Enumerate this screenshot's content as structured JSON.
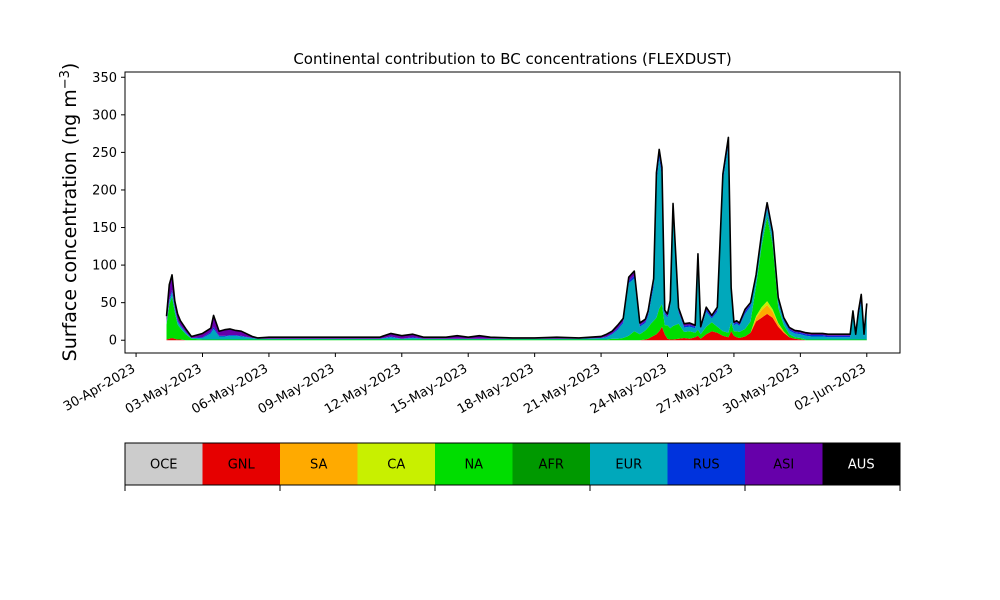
{
  "chart_data": {
    "type": "area",
    "title": "Continental contribution to BC concentrations (FLEXDUST)",
    "ylabel": "Surface concentration (ng m",
    "ylabel_sup": "−3",
    "ylabel_close": ")",
    "xlabel": "",
    "ylim": [
      -17,
      357
    ],
    "xlim": [
      "2023-04-29T12:00",
      "2023-06-03T12:00"
    ],
    "yticks": [
      0,
      50,
      100,
      150,
      200,
      250,
      300,
      350
    ],
    "xticks": [
      "2023-04-30",
      "2023-05-03",
      "2023-05-06",
      "2023-05-09",
      "2023-05-12",
      "2023-05-15",
      "2023-05-18",
      "2023-05-21",
      "2023-05-24",
      "2023-05-27",
      "2023-05-30",
      "2023-06-02"
    ],
    "xtick_labels": [
      "30-Apr-2023",
      "03-May-2023",
      "06-May-2023",
      "09-May-2023",
      "12-May-2023",
      "15-May-2023",
      "18-May-2023",
      "21-May-2023",
      "24-May-2023",
      "27-May-2023",
      "30-May-2023",
      "02-Jun-2023"
    ],
    "grid": false,
    "legend_placement": "below chart, colorbar style",
    "x": [
      "2023-05-01T09:00",
      "2023-05-01T12:00",
      "2023-05-01T15:00",
      "2023-05-01T18:00",
      "2023-05-01T21:00",
      "2023-05-02T00:00",
      "2023-05-02T06:00",
      "2023-05-02T12:00",
      "2023-05-03T00:00",
      "2023-05-03T09:00",
      "2023-05-03T12:00",
      "2023-05-03T18:00",
      "2023-05-04T00:00",
      "2023-05-04T06:00",
      "2023-05-04T12:00",
      "2023-05-04T18:00",
      "2023-05-05T06:00",
      "2023-05-05T12:00",
      "2023-05-06T00:00",
      "2023-05-07T00:00",
      "2023-05-08T00:00",
      "2023-05-09T00:00",
      "2023-05-10T00:00",
      "2023-05-11T00:00",
      "2023-05-11T12:00",
      "2023-05-12T00:00",
      "2023-05-12T12:00",
      "2023-05-13T00:00",
      "2023-05-14T00:00",
      "2023-05-14T12:00",
      "2023-05-15T00:00",
      "2023-05-15T12:00",
      "2023-05-16T00:00",
      "2023-05-17T00:00",
      "2023-05-18T00:00",
      "2023-05-19T00:00",
      "2023-05-20T00:00",
      "2023-05-21T00:00",
      "2023-05-21T06:00",
      "2023-05-21T12:00",
      "2023-05-21T18:00",
      "2023-05-22T00:00",
      "2023-05-22T06:00",
      "2023-05-22T12:00",
      "2023-05-22T18:00",
      "2023-05-23T00:00",
      "2023-05-23T03:00",
      "2023-05-23T06:00",
      "2023-05-23T09:00",
      "2023-05-23T12:00",
      "2023-05-23T15:00",
      "2023-05-23T18:00",
      "2023-05-23T21:00",
      "2023-05-24T00:00",
      "2023-05-24T03:00",
      "2023-05-24T06:00",
      "2023-05-24T12:00",
      "2023-05-24T18:00",
      "2023-05-25T00:00",
      "2023-05-25T06:00",
      "2023-05-25T09:00",
      "2023-05-25T12:00",
      "2023-05-25T18:00",
      "2023-05-26T00:00",
      "2023-05-26T06:00",
      "2023-05-26T12:00",
      "2023-05-26T18:00",
      "2023-05-26T21:00",
      "2023-05-27T00:00",
      "2023-05-27T03:00",
      "2023-05-27T06:00",
      "2023-05-27T12:00",
      "2023-05-27T18:00",
      "2023-05-28T00:00",
      "2023-05-28T06:00",
      "2023-05-28T12:00",
      "2023-05-28T18:00",
      "2023-05-29T00:00",
      "2023-05-29T06:00",
      "2023-05-29T12:00",
      "2023-05-29T18:00",
      "2023-05-30T00:00",
      "2023-05-30T06:00",
      "2023-05-30T12:00",
      "2023-05-30T18:00",
      "2023-05-31T00:00",
      "2023-05-31T06:00",
      "2023-05-31T12:00",
      "2023-05-31T18:00",
      "2023-06-01T00:00",
      "2023-06-01T06:00",
      "2023-06-01T09:00",
      "2023-06-01T12:00",
      "2023-06-01T15:00",
      "2023-06-01T18:00",
      "2023-06-01T21:00",
      "2023-06-02T00:00"
    ],
    "series": [
      {
        "name": "OCE",
        "color": "#cccccc",
        "values": [
          0,
          0,
          0,
          0,
          0,
          0,
          0,
          0,
          0,
          0,
          0,
          0,
          0,
          0,
          0,
          0,
          0,
          0,
          0,
          0,
          0,
          0,
          0,
          0,
          0,
          0,
          0,
          0,
          0,
          0,
          0,
          0,
          0,
          0,
          0,
          0,
          0,
          0,
          0,
          0,
          0,
          0,
          0,
          0,
          0,
          0,
          0,
          0,
          0,
          0,
          0,
          0,
          0,
          0,
          0,
          0,
          0,
          0,
          0,
          0,
          0,
          0,
          0,
          0,
          0,
          0,
          0,
          0,
          0,
          0,
          0,
          0,
          0,
          0,
          0,
          0,
          0,
          0,
          0,
          0,
          0,
          0,
          0,
          0,
          0,
          0,
          0,
          0,
          0,
          0,
          0,
          0,
          0,
          0,
          0,
          0,
          0
        ]
      },
      {
        "name": "GNL",
        "color": "#e60000",
        "values": [
          1,
          2,
          3,
          2,
          1,
          1,
          0,
          0,
          0,
          0,
          0,
          0,
          0,
          0,
          0,
          0,
          0,
          0,
          0,
          0,
          0,
          0,
          0,
          0,
          0,
          0,
          0,
          0,
          0,
          0,
          0,
          0,
          0,
          0,
          0,
          0,
          0,
          0,
          0,
          0,
          0,
          0,
          0,
          0,
          0,
          1,
          2,
          4,
          6,
          8,
          12,
          18,
          8,
          2,
          1,
          1,
          2,
          3,
          2,
          4,
          6,
          2,
          8,
          12,
          10,
          6,
          4,
          12,
          6,
          4,
          3,
          5,
          10,
          25,
          30,
          35,
          30,
          18,
          10,
          4,
          2,
          1,
          0,
          0,
          0,
          0,
          0,
          0,
          0,
          0,
          0,
          0,
          0,
          0,
          0,
          0,
          0
        ]
      },
      {
        "name": "SA",
        "color": "#ffaa00",
        "values": [
          0,
          0,
          0,
          0,
          0,
          0,
          0,
          0,
          0,
          0,
          0,
          0,
          0,
          0,
          0,
          0,
          0,
          0,
          0,
          0,
          0,
          0,
          0,
          0,
          0,
          0,
          0,
          0,
          0,
          0,
          0,
          0,
          0,
          0,
          0,
          0,
          0,
          0,
          0,
          0,
          0,
          0,
          0,
          0,
          0,
          0,
          0,
          0,
          0,
          0,
          0,
          0,
          0,
          0,
          0,
          0,
          0,
          0,
          0,
          0,
          0,
          0,
          0,
          0,
          0,
          0,
          0,
          0,
          0,
          0,
          0,
          0,
          0,
          5,
          10,
          12,
          8,
          4,
          2,
          0,
          0,
          0,
          0,
          0,
          0,
          0,
          0,
          0,
          0,
          0,
          0,
          0,
          0,
          0,
          0,
          0,
          0
        ]
      },
      {
        "name": "CA",
        "color": "#c8f000",
        "values": [
          0,
          0,
          0,
          0,
          0,
          0,
          0,
          0,
          0,
          0,
          0,
          0,
          0,
          0,
          0,
          0,
          0,
          0,
          0,
          0,
          0,
          0,
          0,
          0,
          0,
          0,
          0,
          0,
          0,
          0,
          0,
          0,
          0,
          0,
          0,
          0,
          0,
          0,
          0,
          0,
          0,
          0,
          0,
          0,
          0,
          0,
          0,
          0,
          0,
          0,
          0,
          0,
          0,
          0,
          0,
          0,
          0,
          0,
          0,
          0,
          0,
          0,
          0,
          0,
          0,
          0,
          0,
          0,
          0,
          0,
          0,
          0,
          0,
          2,
          4,
          5,
          3,
          1,
          0,
          0,
          0,
          0,
          0,
          0,
          0,
          0,
          0,
          0,
          0,
          0,
          0,
          0,
          0,
          0,
          0,
          0,
          0
        ]
      },
      {
        "name": "NA",
        "color": "#00dd00",
        "values": [
          20,
          45,
          55,
          35,
          20,
          15,
          8,
          2,
          1,
          1,
          1,
          1,
          1,
          1,
          1,
          1,
          1,
          1,
          1,
          1,
          1,
          1,
          1,
          1,
          1,
          1,
          1,
          1,
          1,
          1,
          1,
          1,
          1,
          1,
          1,
          1,
          1,
          1,
          1,
          2,
          2,
          3,
          6,
          12,
          8,
          12,
          15,
          18,
          20,
          22,
          30,
          30,
          12,
          18,
          15,
          18,
          20,
          8,
          10,
          6,
          8,
          6,
          10,
          12,
          8,
          6,
          6,
          12,
          6,
          8,
          8,
          10,
          15,
          40,
          80,
          110,
          85,
          20,
          8,
          4,
          2,
          2,
          1,
          1,
          1,
          1,
          1,
          1,
          1,
          1,
          1,
          1,
          1,
          1,
          1,
          1,
          1
        ]
      },
      {
        "name": "AFR",
        "color": "#009900",
        "values": [
          0,
          0,
          0,
          0,
          0,
          0,
          0,
          0,
          0,
          0,
          0,
          0,
          0,
          0,
          0,
          0,
          0,
          0,
          0,
          0,
          0,
          0,
          0,
          0,
          0,
          0,
          0,
          0,
          0,
          0,
          0,
          0,
          0,
          0,
          0,
          0,
          0,
          0,
          0,
          0,
          0,
          0,
          0,
          0,
          0,
          0,
          0,
          0,
          0,
          0,
          0,
          0,
          0,
          0,
          0,
          0,
          0,
          0,
          0,
          0,
          0,
          0,
          0,
          0,
          0,
          0,
          0,
          0,
          0,
          0,
          0,
          0,
          0,
          0,
          2,
          3,
          2,
          1,
          0,
          0,
          0,
          0,
          0,
          0,
          0,
          0,
          0,
          0,
          0,
          0,
          0,
          0,
          0,
          0,
          0,
          0,
          0
        ]
      },
      {
        "name": "EUR",
        "color": "#00a8bb",
        "values": [
          2,
          5,
          6,
          5,
          4,
          3,
          2,
          1,
          2,
          8,
          14,
          4,
          4,
          5,
          5,
          4,
          2,
          1,
          1,
          1,
          1,
          1,
          1,
          1,
          3,
          1,
          2,
          1,
          1,
          1,
          1,
          1,
          1,
          1,
          1,
          1,
          1,
          2,
          3,
          6,
          12,
          20,
          70,
          70,
          10,
          10,
          15,
          30,
          45,
          180,
          200,
          170,
          15,
          10,
          30,
          155,
          15,
          6,
          6,
          6,
          95,
          6,
          20,
          5,
          20,
          200,
          250,
          40,
          8,
          10,
          8,
          20,
          20,
          10,
          10,
          10,
          10,
          8,
          6,
          5,
          5,
          5,
          5,
          4,
          4,
          4,
          3,
          3,
          3,
          3,
          3,
          30,
          3,
          30,
          50,
          3,
          40
        ]
      },
      {
        "name": "RUS",
        "color": "#0033dd",
        "values": [
          1,
          2,
          3,
          2,
          2,
          1,
          1,
          0,
          1,
          2,
          3,
          1,
          1,
          1,
          1,
          1,
          0,
          0,
          0,
          0,
          0,
          0,
          0,
          0,
          1,
          0,
          1,
          0,
          0,
          0,
          0,
          0,
          0,
          0,
          0,
          0,
          0,
          0,
          1,
          1,
          2,
          2,
          3,
          4,
          2,
          2,
          3,
          4,
          5,
          6,
          6,
          6,
          2,
          2,
          3,
          4,
          2,
          2,
          2,
          2,
          3,
          2,
          3,
          2,
          3,
          5,
          6,
          3,
          2,
          2,
          2,
          3,
          3,
          2,
          2,
          2,
          2,
          2,
          2,
          2,
          2,
          2,
          2,
          2,
          2,
          2,
          2,
          2,
          2,
          2,
          2,
          4,
          2,
          4,
          5,
          2,
          4
        ]
      },
      {
        "name": "ASI",
        "color": "#6600aa",
        "values": [
          8,
          20,
          20,
          8,
          8,
          6,
          4,
          2,
          5,
          5,
          15,
          6,
          8,
          8,
          6,
          6,
          2,
          1,
          2,
          2,
          2,
          2,
          2,
          2,
          4,
          4,
          4,
          2,
          2,
          4,
          2,
          4,
          2,
          1,
          1,
          2,
          1,
          2,
          3,
          3,
          4,
          4,
          5,
          6,
          3,
          3,
          4,
          5,
          6,
          7,
          6,
          6,
          3,
          3,
          4,
          4,
          4,
          3,
          3,
          2,
          3,
          2,
          3,
          2,
          3,
          4,
          4,
          3,
          2,
          2,
          2,
          3,
          2,
          3,
          4,
          6,
          4,
          3,
          2,
          2,
          2,
          2,
          2,
          2,
          2,
          2,
          2,
          2,
          2,
          2,
          2,
          4,
          2,
          4,
          5,
          2,
          4
        ]
      },
      {
        "name": "AUS",
        "color": "#000000",
        "values": [
          0,
          0,
          0,
          0,
          0,
          0,
          0,
          0,
          0,
          0,
          0,
          0,
          0,
          0,
          0,
          0,
          0,
          0,
          0,
          0,
          0,
          0,
          0,
          0,
          0,
          0,
          0,
          0,
          0,
          0,
          0,
          0,
          0,
          0,
          0,
          0,
          0,
          0,
          0,
          0,
          0,
          0,
          0,
          0,
          0,
          0,
          0,
          0,
          0,
          0,
          0,
          0,
          0,
          0,
          0,
          0,
          0,
          0,
          0,
          0,
          0,
          0,
          0,
          0,
          0,
          0,
          0,
          0,
          0,
          0,
          0,
          0,
          0,
          0,
          0,
          0,
          0,
          0,
          0,
          0,
          0,
          0,
          0,
          0,
          0,
          0,
          0,
          0,
          0,
          0,
          0,
          0,
          0,
          0,
          0,
          0,
          0
        ]
      }
    ]
  }
}
